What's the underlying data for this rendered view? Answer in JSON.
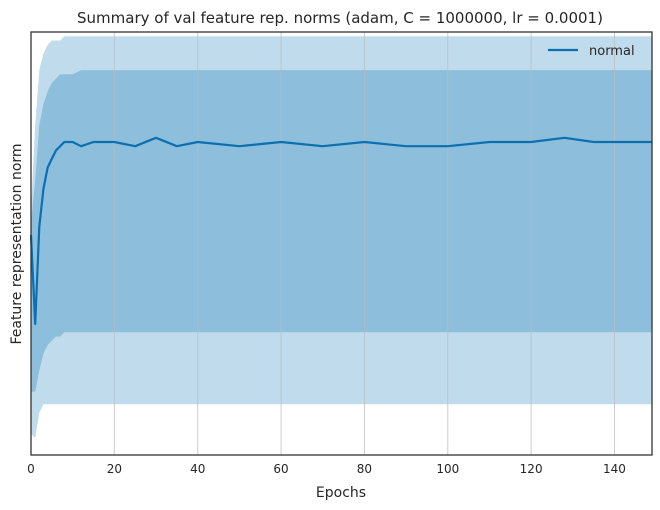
{
  "chart_data": {
    "type": "area",
    "title": "Summary of val feature rep. norms (adam, C = 1000000, lr = 0.0001)",
    "xlabel": "Epochs",
    "ylabel": "Feature representation norm",
    "xlim": [
      0,
      149
    ],
    "ylim": [
      0,
      100
    ],
    "y_ticks_shown": false,
    "x_ticks": [
      "0",
      "20",
      "40",
      "60",
      "80",
      "100",
      "120",
      "140"
    ],
    "grid": "vertical",
    "legend": "top-right",
    "colors": {
      "line": "#0b6fb0",
      "inner_band": "#8dbfdc",
      "outer_band": "#c0dcec",
      "grid": "#b8bcc2",
      "axes": "#333333"
    },
    "series": [
      {
        "name": "normal",
        "x": [
          0,
          1,
          2,
          3,
          4,
          5,
          6,
          7,
          8,
          10,
          12,
          15,
          20,
          25,
          30,
          35,
          40,
          50,
          60,
          70,
          80,
          90,
          100,
          110,
          120,
          128,
          135,
          140,
          149
        ],
        "mean": [
          52,
          31,
          54,
          63,
          68,
          70,
          72,
          73,
          74,
          74,
          73,
          74,
          74,
          73,
          75,
          73,
          74,
          73,
          74,
          73,
          74,
          73,
          73,
          74,
          74,
          75,
          74,
          74,
          74
        ],
        "inner_upper": [
          55,
          65,
          78,
          83,
          86,
          88,
          89,
          90,
          90,
          90,
          91,
          91,
          91,
          91,
          91,
          91,
          91,
          91,
          91,
          91,
          91,
          91,
          91,
          91,
          91,
          91,
          91,
          91,
          91
        ],
        "inner_lower": [
          15,
          15,
          20,
          24,
          26,
          27,
          28,
          28,
          29,
          29,
          29,
          29,
          29,
          29,
          29,
          29,
          29,
          29,
          29,
          29,
          29,
          29,
          29,
          29,
          29,
          29,
          29,
          29,
          29
        ],
        "outer_upper": [
          58,
          78,
          91,
          95,
          97,
          98,
          98,
          98,
          99,
          99,
          99,
          99,
          99,
          99,
          99,
          99,
          99,
          99,
          99,
          99,
          99,
          99,
          99,
          99,
          99,
          99,
          99,
          99,
          99
        ],
        "outer_lower": [
          5,
          4,
          10,
          12,
          12,
          12,
          12,
          12,
          12,
          12,
          12,
          12,
          12,
          12,
          12,
          12,
          12,
          12,
          12,
          12,
          12,
          12,
          12,
          12,
          12,
          12,
          12,
          12,
          12
        ]
      }
    ]
  }
}
